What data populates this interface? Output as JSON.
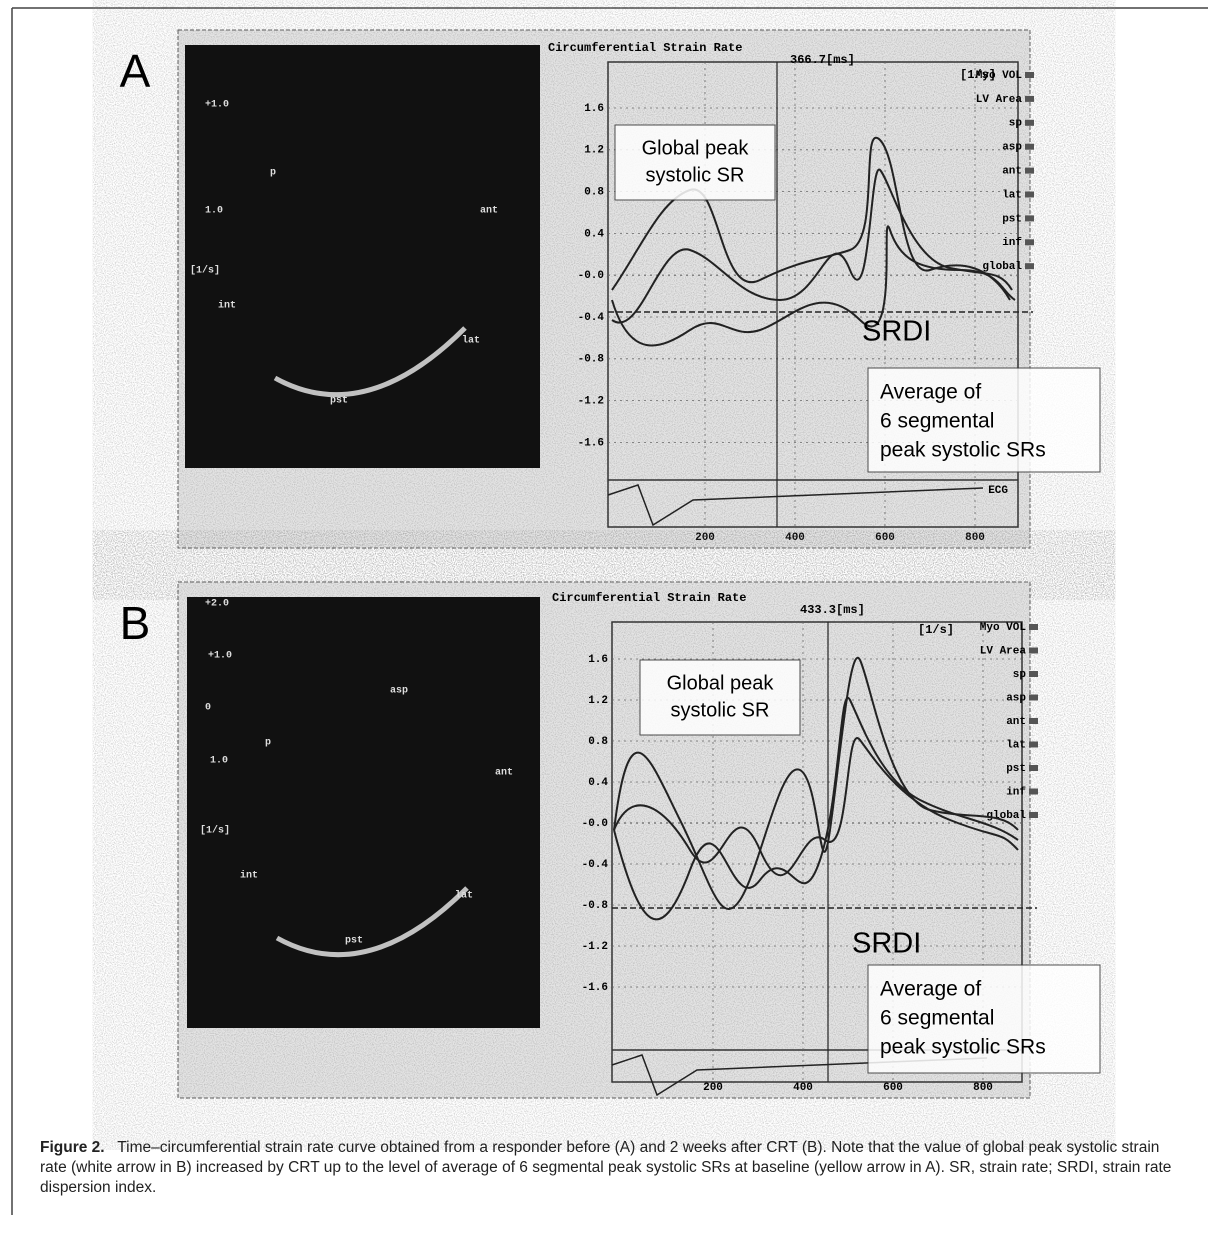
{
  "figure": {
    "panels": [
      {
        "label": "A",
        "plot_title": "Circumferential Strain Rate",
        "time": "366.7[ms]",
        "unit": "[1/s]",
        "yticks": [
          "1.6",
          "1.2",
          "0.8",
          "0.4",
          "-0.0",
          "-0.4",
          "-0.8",
          "-1.2",
          "-1.6"
        ],
        "xticks": [
          "200",
          "400",
          "600",
          "800"
        ],
        "legend": [
          "Myo VOL",
          "LV Area",
          "sp",
          "asp",
          "ant",
          "lat",
          "pst",
          "inf",
          "global"
        ],
        "ecg": "ECG",
        "echo_labels": [
          "+1.0",
          "1.0",
          "[1/s]",
          "int",
          "p",
          "ant",
          "lat",
          "pst"
        ],
        "global_box": [
          "Global peak",
          "systolic SR"
        ],
        "srdi": "SRDI",
        "average_box": [
          "Average of",
          "6 segmental",
          "peak systolic SRs"
        ]
      },
      {
        "label": "B",
        "plot_title": "Circumferential Strain Rate",
        "time": "433.3[ms]",
        "unit": "[1/s]",
        "yticks": [
          "1.6",
          "1.2",
          "0.8",
          "0.4",
          "-0.0",
          "-0.4",
          "-0.8",
          "-1.2",
          "-1.6"
        ],
        "xticks": [
          "200",
          "400",
          "600",
          "800"
        ],
        "legend": [
          "Myo VOL",
          "LV Area",
          "sp",
          "asp",
          "ant",
          "lat",
          "pst",
          "inf",
          "global"
        ],
        "echo_labels": [
          "+2.0",
          "+1.0",
          "0",
          "1.0",
          "[1/s]",
          "asp",
          "p",
          "ant",
          "int",
          "lat",
          "pst"
        ],
        "global_box": [
          "Global peak",
          "systolic SR"
        ],
        "srdi": "SRDI",
        "average_box": [
          "Average of",
          "6 segmental",
          "peak systolic SRs"
        ]
      }
    ],
    "caption": {
      "label": "Figure 2.",
      "text": "Time–circumferential strain rate curve obtained from a responder before (A) and 2 weeks after CRT (B). Note that the value of global peak systolic strain rate (white arrow in B) increased by CRT up to the level of average of 6 segmental peak systolic SRs at baseline (yellow arrow in A). SR, strain rate; SRDI, strain rate dispersion index."
    }
  }
}
